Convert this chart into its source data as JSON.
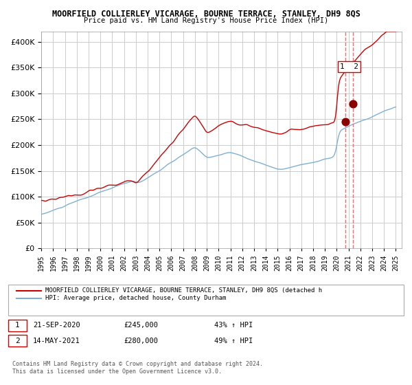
{
  "title": "MOORFIELD COLLIERLEY VICARAGE, BOURNE TERRACE, STANLEY, DH9 8QS",
  "subtitle": "Price paid vs. HM Land Registry's House Price Index (HPI)",
  "legend_line1": "MOORFIELD COLLIERLEY VICARAGE, BOURNE TERRACE, STANLEY, DH9 8QS (detached h",
  "legend_line2": "HPI: Average price, detached house, County Durham",
  "transaction1_label": "1",
  "transaction1_date": "21-SEP-2020",
  "transaction1_price": "£245,000",
  "transaction1_hpi": "43% ↑ HPI",
  "transaction2_label": "2",
  "transaction2_date": "14-MAY-2021",
  "transaction2_price": "£280,000",
  "transaction2_hpi": "49% ↑ HPI",
  "footnote": "Contains HM Land Registry data © Crown copyright and database right 2024.\nThis data is licensed under the Open Government Licence v3.0.",
  "red_color": "#cc0000",
  "blue_color": "#7eb0d4",
  "dot_color": "#8b0000",
  "vline_color": "#ff6666",
  "grid_color": "#cccccc",
  "bg_color": "#ffffff",
  "ylim": [
    0,
    420000
  ],
  "yticks": [
    0,
    50000,
    100000,
    150000,
    200000,
    250000,
    300000,
    350000,
    400000
  ],
  "start_year": 1995,
  "end_year": 2025,
  "transaction1_year": 2020.72,
  "transaction2_year": 2021.37,
  "transaction1_value": 245000,
  "transaction2_value": 280000
}
